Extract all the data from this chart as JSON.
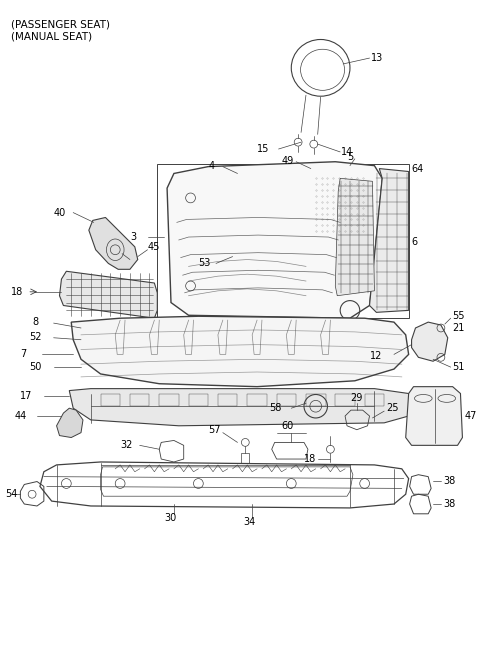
{
  "bg_color": "#ffffff",
  "line_color": "#404040",
  "label_color": "#000000",
  "header": "(PASSENGER SEAT)\n(MANUAL SEAT)",
  "fig_width": 4.8,
  "fig_height": 6.55,
  "dpi": 100
}
